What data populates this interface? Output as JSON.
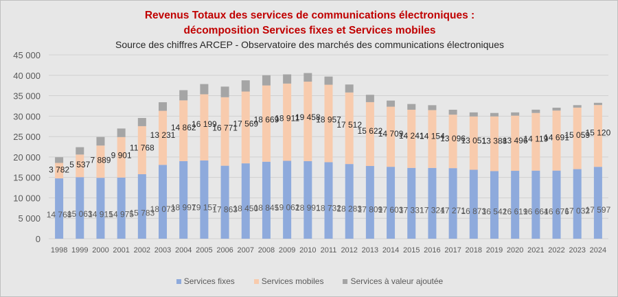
{
  "chart_data": {
    "type": "bar",
    "stacked": true,
    "title": [
      "Revenus Totaux des services de communications électroniques :",
      "décomposition  Services fixes et Services mobiles"
    ],
    "subtitle": "Source des chiffres ARCEP - Observatoire des marchés des communications électroniques",
    "categories": [
      "1998",
      "1999",
      "2000",
      "2001",
      "2002",
      "2003",
      "2004",
      "2005",
      "2006",
      "2007",
      "2008",
      "2009",
      "2010",
      "2011",
      "2012",
      "2013",
      "2014",
      "2015",
      "2016",
      "2017",
      "2018",
      "2019",
      "2020",
      "2021",
      "2022",
      "2023",
      "2024"
    ],
    "series": [
      {
        "name": "Services fixes",
        "color": "#8eaadc",
        "labels": true,
        "values": [
          14768,
          15063,
          14915,
          14975,
          15783,
          18073,
          18997,
          19157,
          17863,
          18450,
          18845,
          19062,
          18991,
          18732,
          18283,
          17809,
          17603,
          17331,
          17324,
          17271,
          16873,
          16542,
          16619,
          16664,
          16676,
          17032,
          17597
        ]
      },
      {
        "name": "Services mobiles",
        "color": "#f8cbad",
        "labels": true,
        "values": [
          3782,
          5537,
          7889,
          9901,
          11768,
          13231,
          14862,
          16199,
          16771,
          17569,
          18669,
          18911,
          19458,
          18957,
          17512,
          15622,
          14709,
          14241,
          14154,
          13096,
          13051,
          13388,
          13496,
          14119,
          14691,
          15059,
          15120
        ]
      },
      {
        "name": "Services à valeur ajoutée",
        "color": "#a5a5a5",
        "labels": false,
        "values": [
          1400,
          1800,
          2100,
          2100,
          2000,
          2100,
          2500,
          2500,
          2600,
          2750,
          2500,
          2250,
          2100,
          2000,
          1950,
          1800,
          1500,
          1400,
          1200,
          1200,
          1000,
          850,
          800,
          800,
          700,
          600,
          550
        ]
      }
    ],
    "ylim": [
      0,
      45000
    ],
    "yticks": [
      0,
      5000,
      10000,
      15000,
      20000,
      25000,
      30000,
      35000,
      40000,
      45000
    ],
    "ytick_labels": [
      "0",
      "5 000",
      "10 000",
      "15 000",
      "20 000",
      "25 000",
      "30 000",
      "35 000",
      "40 000",
      "45 000"
    ],
    "grid": true,
    "legend_position": "bottom"
  }
}
